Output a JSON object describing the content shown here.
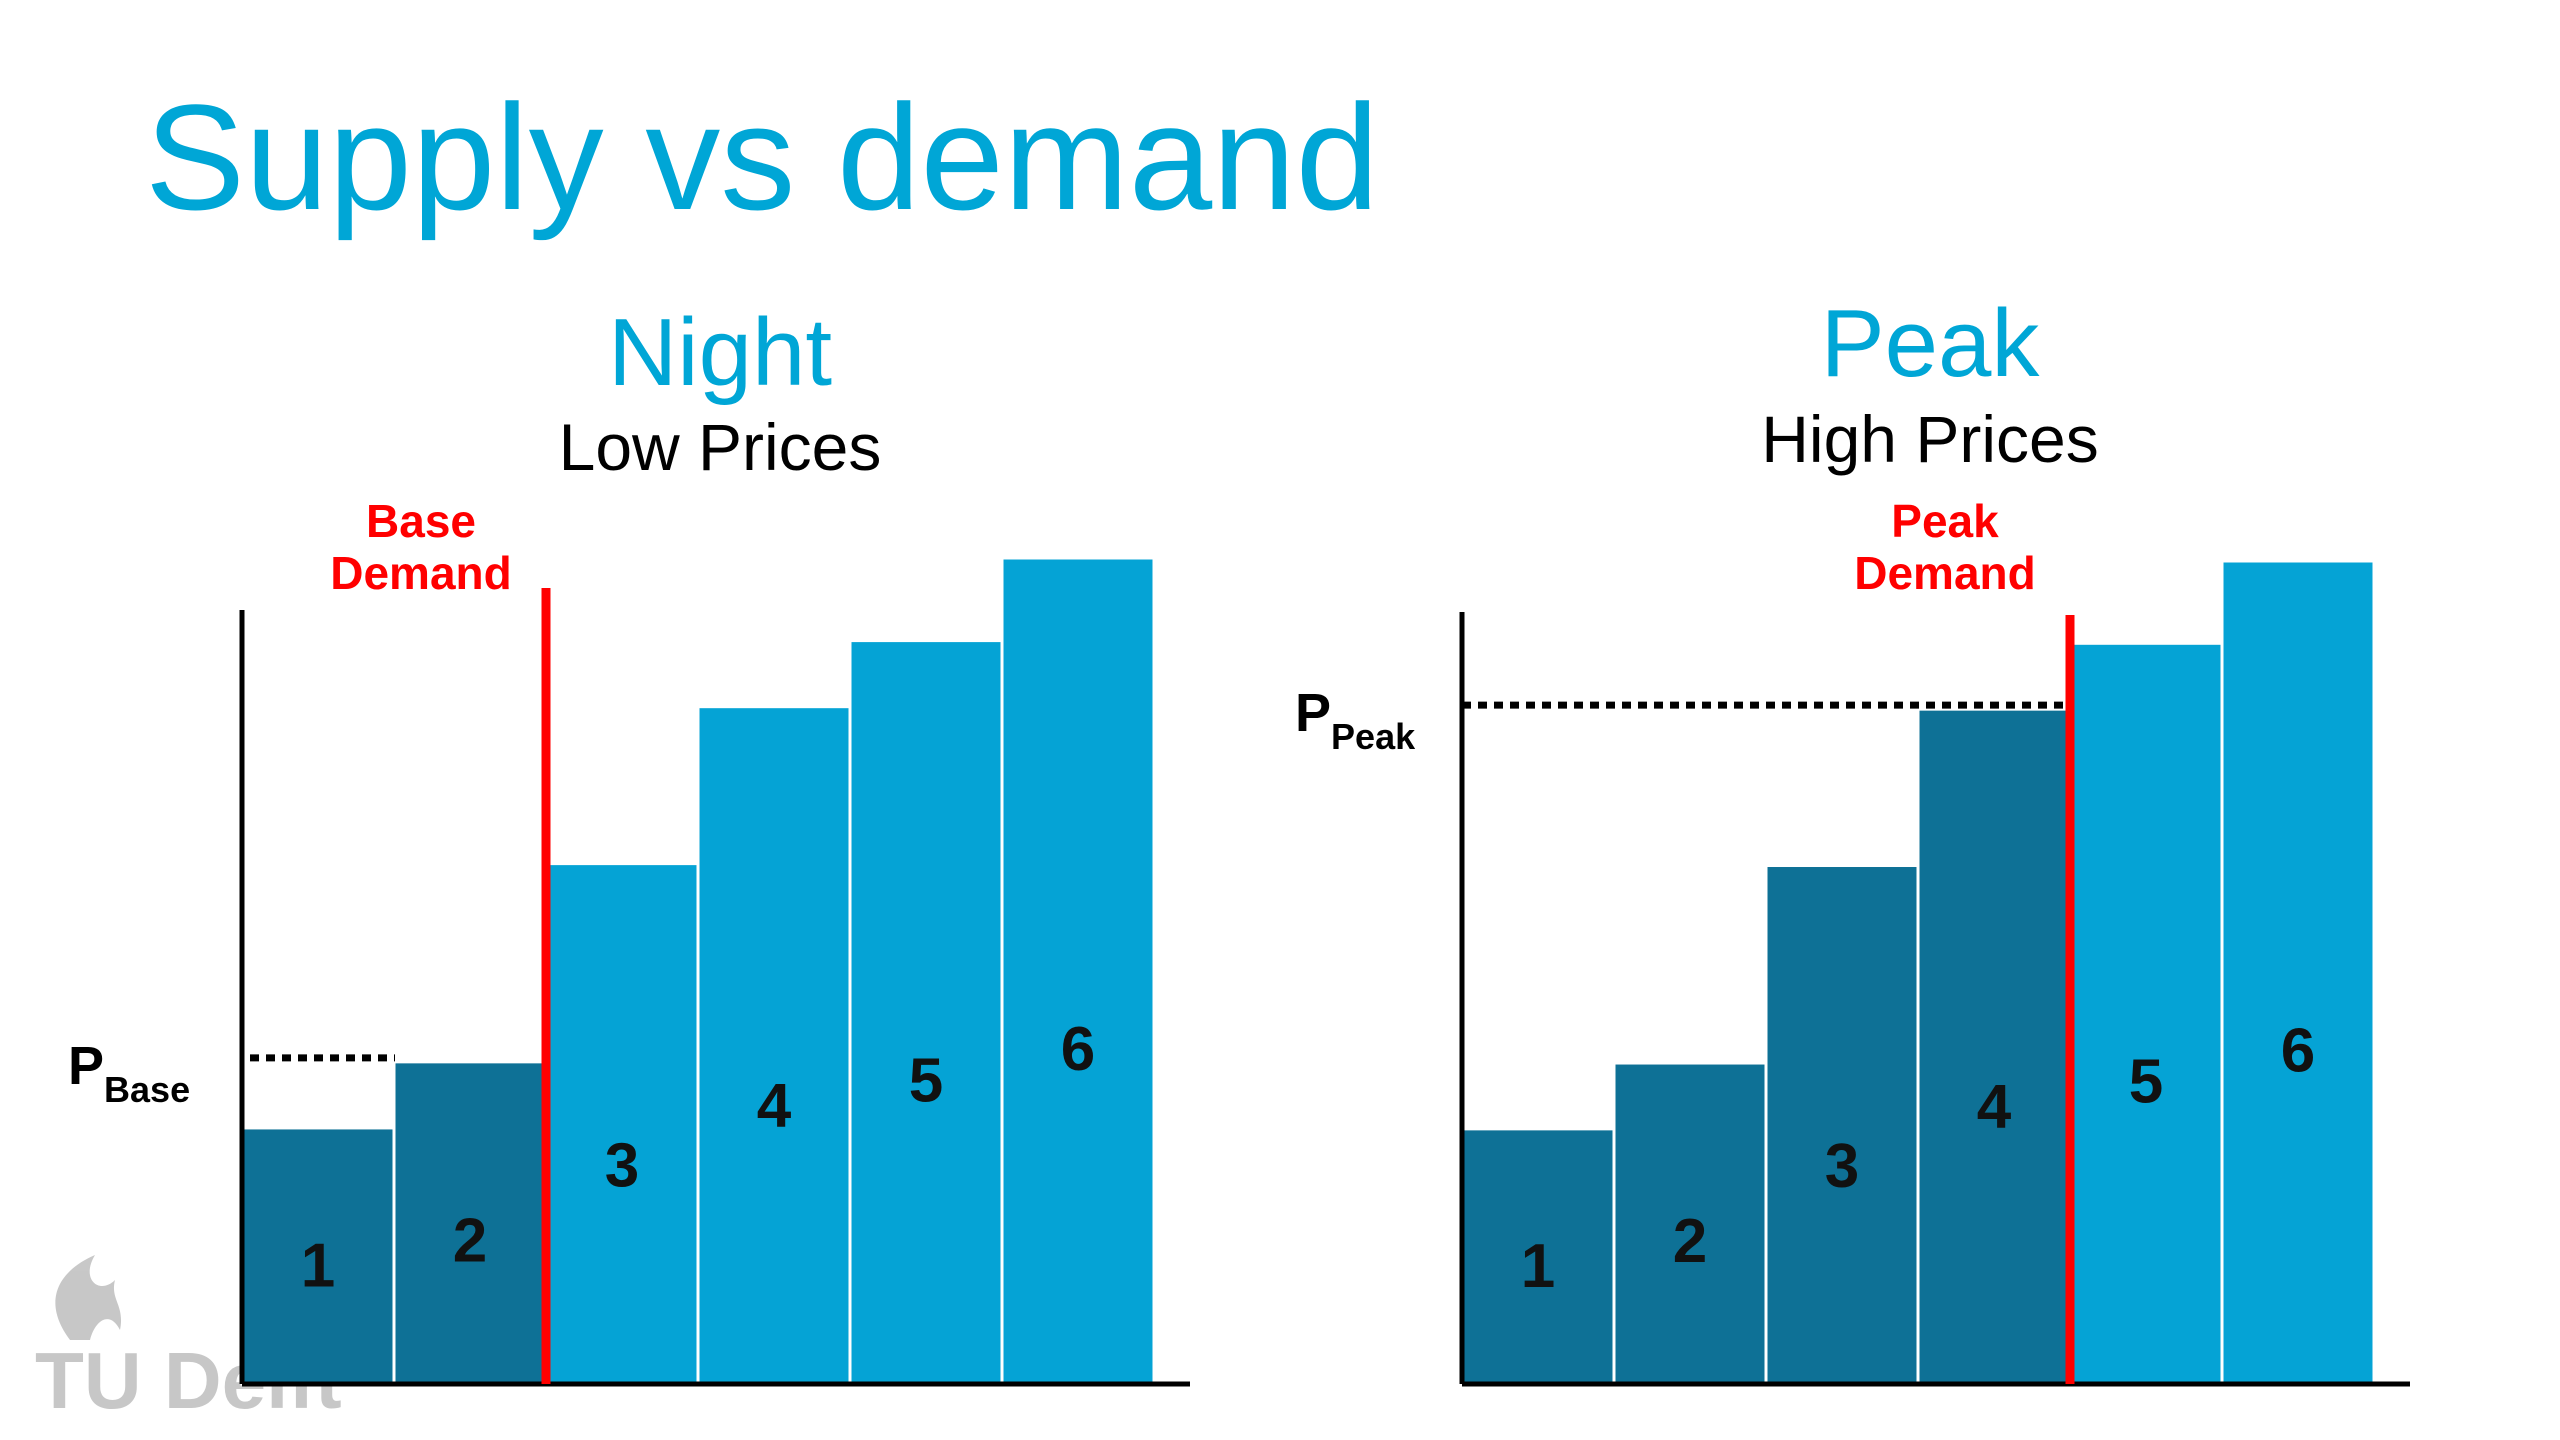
{
  "slide": {
    "title": "Supply vs demand",
    "logo_text": "TU Delft"
  },
  "colors": {
    "title": "#00a6d6",
    "bar_dispatched": "#0e7196",
    "bar_undispatched": "#05a3d5",
    "demand_line": "#ff0000",
    "demand_label": "#ff0000",
    "axis": "#000000",
    "bar_label": "#111111",
    "logo": "#9a9a9a"
  },
  "chart_data": [
    {
      "type": "bar",
      "title": "Night",
      "subtitle": "Low Prices",
      "categories": [
        "1",
        "2",
        "3",
        "4",
        "5",
        "6"
      ],
      "values": [
        31,
        39,
        63,
        82,
        90,
        100
      ],
      "dispatched_units": 2,
      "demand_label": [
        "Base",
        "Demand"
      ],
      "price_label": {
        "main": "P",
        "sub": "Base"
      },
      "price_level": 39,
      "ylim": [
        0,
        100
      ],
      "grid": false,
      "legend": "none"
    },
    {
      "type": "bar",
      "title": "Peak",
      "subtitle": "High Prices",
      "categories": [
        "1",
        "2",
        "3",
        "4",
        "5",
        "6"
      ],
      "values": [
        31,
        39,
        63,
        82,
        90,
        100
      ],
      "dispatched_units": 4,
      "demand_label": [
        "Peak",
        "Demand"
      ],
      "price_label": {
        "main": "P",
        "sub": "Peak"
      },
      "price_level": 82,
      "ylim": [
        0,
        100
      ],
      "grid": false,
      "legend": "none"
    }
  ]
}
